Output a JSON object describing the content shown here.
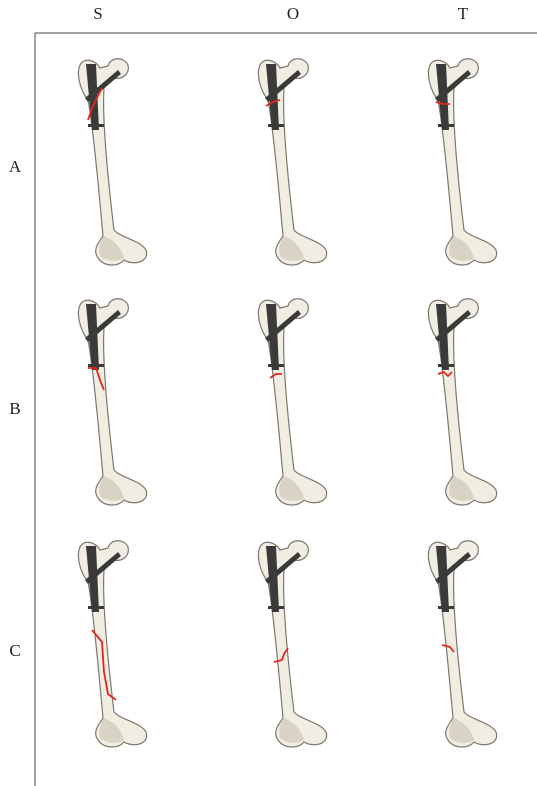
{
  "columns": [
    "S",
    "O",
    "T"
  ],
  "rows": [
    "A",
    "B",
    "C"
  ]
}
